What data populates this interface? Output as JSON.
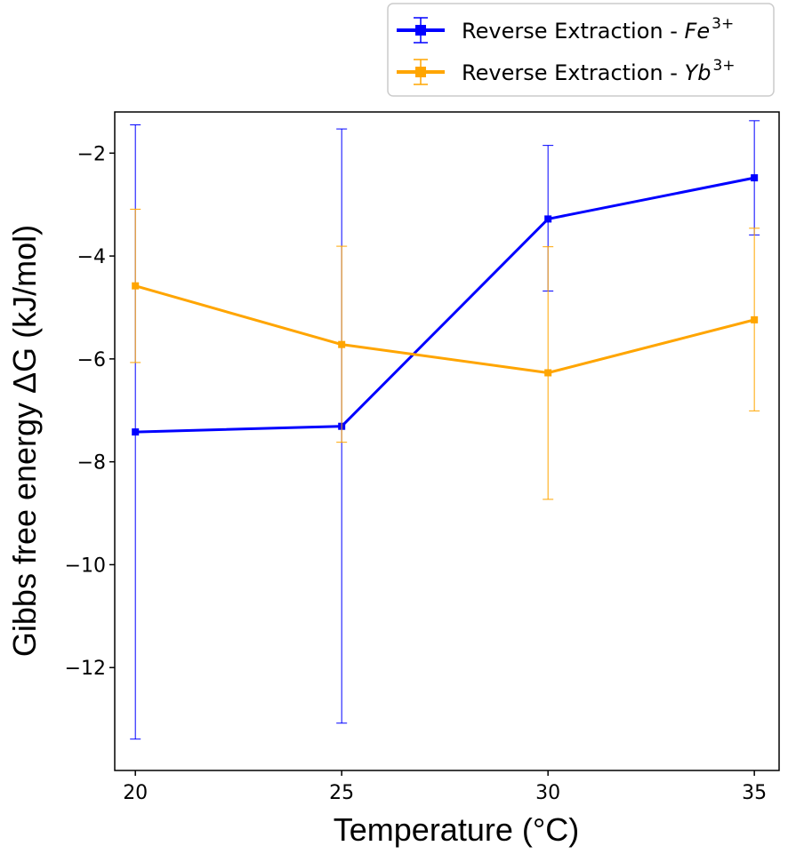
{
  "chart_data": {
    "type": "line",
    "xlabel": "Temperature (°C)",
    "ylabel": "Gibbs free energy ΔG (kJ/mol)",
    "x": [
      20,
      25,
      30,
      35
    ],
    "x_tick_labels": [
      "20",
      "25",
      "30",
      "35"
    ],
    "y_tick_labels": [
      "−2",
      "−4",
      "−6",
      "−8",
      "−10",
      "−12"
    ],
    "y_ticks": [
      -2,
      -4,
      -6,
      -8,
      -10,
      -12
    ],
    "xlim": [
      19.5,
      35.6
    ],
    "ylim": [
      -14.0,
      -1.2
    ],
    "grid": false,
    "legend_position": "top-right, outside plot area",
    "series": [
      {
        "name": "Reverse Extraction - Fe",
        "name_superscript": "3+",
        "color": "#0000ff",
        "marker": "square",
        "values": [
          -7.42,
          -7.31,
          -3.28,
          -2.48
        ],
        "err_low": [
          -13.39,
          -13.08,
          -4.68,
          -3.59
        ],
        "err_high": [
          -1.45,
          -1.53,
          -1.85,
          -1.37
        ]
      },
      {
        "name": "Reverse Extraction - Yb",
        "name_superscript": "3+",
        "color": "#ffa500",
        "marker": "square",
        "values": [
          -4.58,
          -5.72,
          -6.27,
          -5.24
        ],
        "err_low": [
          -6.07,
          -7.62,
          -8.73,
          -7.01
        ],
        "err_high": [
          -3.09,
          -3.81,
          -3.82,
          -3.46
        ]
      }
    ]
  }
}
